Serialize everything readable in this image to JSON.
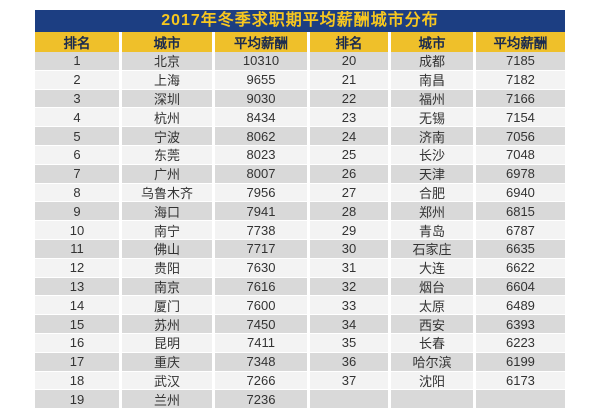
{
  "title": "2017年冬季求职期平均薪酬城市分布",
  "table": {
    "columns": [
      "排名",
      "城市",
      "平均薪酬",
      "排名",
      "城市",
      "平均薪酬"
    ],
    "rows": [
      [
        "1",
        "北京",
        "10310",
        "20",
        "成都",
        "7185"
      ],
      [
        "2",
        "上海",
        "9655",
        "21",
        "南昌",
        "7182"
      ],
      [
        "3",
        "深圳",
        "9030",
        "22",
        "福州",
        "7166"
      ],
      [
        "4",
        "杭州",
        "8434",
        "23",
        "无锡",
        "7154"
      ],
      [
        "5",
        "宁波",
        "8062",
        "24",
        "济南",
        "7056"
      ],
      [
        "6",
        "东莞",
        "8023",
        "25",
        "长沙",
        "7048"
      ],
      [
        "7",
        "广州",
        "8007",
        "26",
        "天津",
        "6978"
      ],
      [
        "8",
        "乌鲁木齐",
        "7956",
        "27",
        "合肥",
        "6940"
      ],
      [
        "9",
        "海口",
        "7941",
        "28",
        "郑州",
        "6815"
      ],
      [
        "10",
        "南宁",
        "7738",
        "29",
        "青岛",
        "6787"
      ],
      [
        "11",
        "佛山",
        "7717",
        "30",
        "石家庄",
        "6635"
      ],
      [
        "12",
        "贵阳",
        "7630",
        "31",
        "大连",
        "6622"
      ],
      [
        "13",
        "南京",
        "7616",
        "32",
        "烟台",
        "6604"
      ],
      [
        "14",
        "厦门",
        "7600",
        "33",
        "太原",
        "6489"
      ],
      [
        "15",
        "苏州",
        "7450",
        "34",
        "西安",
        "6393"
      ],
      [
        "16",
        "昆明",
        "7411",
        "35",
        "长春",
        "6223"
      ],
      [
        "17",
        "重庆",
        "7348",
        "36",
        "哈尔滨",
        "6199"
      ],
      [
        "18",
        "武汉",
        "7266",
        "37",
        "沈阳",
        "6173"
      ],
      [
        "19",
        "兰州",
        "7236",
        "",
        "",
        ""
      ]
    ]
  },
  "colors": {
    "title_bg": "#1c3e82",
    "title_text": "#f7c71f",
    "header_bg": "#efc02a",
    "header_text": "#1b2b4e",
    "row_odd": "#d9d9d9",
    "row_even": "#f3f3f3",
    "cell_text": "#333333"
  },
  "chart_data": {
    "type": "table",
    "title": "2017年冬季求职期平均薪酬城市分布",
    "columns": [
      "排名",
      "城市",
      "平均薪酬"
    ],
    "rows": [
      [
        1,
        "北京",
        10310
      ],
      [
        2,
        "上海",
        9655
      ],
      [
        3,
        "深圳",
        9030
      ],
      [
        4,
        "杭州",
        8434
      ],
      [
        5,
        "宁波",
        8062
      ],
      [
        6,
        "东莞",
        8023
      ],
      [
        7,
        "广州",
        8007
      ],
      [
        8,
        "乌鲁木齐",
        7956
      ],
      [
        9,
        "海口",
        7941
      ],
      [
        10,
        "南宁",
        7738
      ],
      [
        11,
        "佛山",
        7717
      ],
      [
        12,
        "贵阳",
        7630
      ],
      [
        13,
        "南京",
        7616
      ],
      [
        14,
        "厦门",
        7600
      ],
      [
        15,
        "苏州",
        7450
      ],
      [
        16,
        "昆明",
        7411
      ],
      [
        17,
        "重庆",
        7348
      ],
      [
        18,
        "武汉",
        7266
      ],
      [
        19,
        "兰州",
        7236
      ],
      [
        20,
        "成都",
        7185
      ],
      [
        21,
        "南昌",
        7182
      ],
      [
        22,
        "福州",
        7166
      ],
      [
        23,
        "无锡",
        7154
      ],
      [
        24,
        "济南",
        7056
      ],
      [
        25,
        "长沙",
        7048
      ],
      [
        26,
        "天津",
        6978
      ],
      [
        27,
        "合肥",
        6940
      ],
      [
        28,
        "郑州",
        6815
      ],
      [
        29,
        "青岛",
        6787
      ],
      [
        30,
        "石家庄",
        6635
      ],
      [
        31,
        "大连",
        6622
      ],
      [
        32,
        "烟台",
        6604
      ],
      [
        33,
        "太原",
        6489
      ],
      [
        34,
        "西安",
        6393
      ],
      [
        35,
        "长春",
        6223
      ],
      [
        36,
        "哈尔滨",
        6199
      ],
      [
        37,
        "沈阳",
        6173
      ]
    ],
    "layout": "two side-by-side rank/city/salary column groups, ranks 1-19 left, 20-37 right"
  }
}
